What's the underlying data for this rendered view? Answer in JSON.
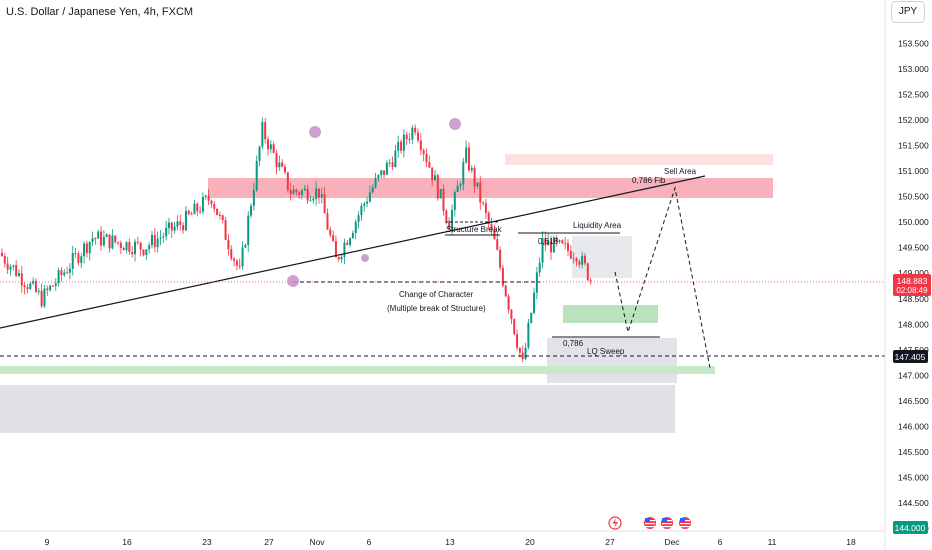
{
  "title": "U.S. Dollar / Japanese Yen, 4h, FXCM",
  "currency_button": "JPY",
  "chart_data": {
    "type": "candlestick",
    "title": "U.S. Dollar / Japanese Yen, 4h, FXCM",
    "ylim": [
      143.8,
      154.3
    ],
    "y_ticks": [
      "153.500",
      "153.000",
      "152.500",
      "152.000",
      "151.500",
      "151.000",
      "150.500",
      "150.000",
      "149.500",
      "149.000",
      "148.500",
      "148.000",
      "147.500",
      "147.000",
      "146.500",
      "146.000",
      "145.500",
      "145.000",
      "144.500",
      "144.000"
    ],
    "x_ticks": [
      "9",
      "16",
      "23",
      "27",
      "Nov",
      "6",
      "13",
      "20",
      "27",
      "Dec",
      "6",
      "11",
      "18"
    ],
    "price_labels": [
      {
        "price": "148.883",
        "countdown": "02:08:49",
        "value": 148.883,
        "color": "#f23645"
      },
      {
        "price": "147.405",
        "value": 147.405,
        "color": "#131722"
      },
      {
        "price": "144.000",
        "value": 144.0,
        "color": "#089981"
      }
    ],
    "annotations": {
      "sell_area": "Sell Area",
      "fib_786_top": "0,786 Fib",
      "structure_break": "Structure Break",
      "liquidity_area": "Liquidity Area",
      "fib_618": "0,618",
      "change_of_character": "Change of Character",
      "multiple_break": "(Multiple break of Structure)",
      "fib_786_bottom": "0,786",
      "lq_sweep": "LQ Sweep"
    },
    "zones": [
      {
        "name": "upper-light-red-zone",
        "y_range": [
          151.1,
          151.3
        ],
        "color": "#fde0e2"
      },
      {
        "name": "supply-zone",
        "y_range": [
          150.5,
          150.9
        ],
        "color": "#f7a9b2"
      },
      {
        "name": "liquidity-zone",
        "y_range": [
          148.9,
          149.8
        ],
        "color": "#e8e9ed"
      },
      {
        "name": "demand-zone",
        "y_range": [
          148.05,
          148.4
        ],
        "color": "#b9e2bd"
      },
      {
        "name": "sweep-gray-zone",
        "y_range": [
          146.95,
          147.8
        ],
        "color": "#e1e3e8"
      },
      {
        "name": "long-green-band",
        "y_range": [
          147.05,
          147.2
        ],
        "color": "#c8e8ca"
      },
      {
        "name": "lower-gray-zone",
        "y_range": [
          146.0,
          146.9
        ],
        "color": "#dfe1e6"
      }
    ],
    "series": [
      {
        "name": "segment-1",
        "start": 149.4,
        "end": 148.5,
        "count": 15,
        "bias": 0
      },
      {
        "name": "segment-2",
        "start": 148.5,
        "end": 149.7,
        "count": 18,
        "bias": 0
      },
      {
        "name": "segment-3",
        "start": 149.7,
        "end": 149.5,
        "count": 18,
        "bias": 0
      },
      {
        "name": "segment-4",
        "start": 149.5,
        "end": 150.0,
        "count": 14,
        "bias": 0
      },
      {
        "name": "segment-5",
        "start": 150.0,
        "end": 150.5,
        "count": 10,
        "bias": 0
      },
      {
        "name": "segment-6",
        "start": 150.5,
        "end": 149.0,
        "count": 10,
        "bias": 0
      },
      {
        "name": "segment-7",
        "start": 149.0,
        "end": 151.8,
        "count": 8,
        "bias": 0
      },
      {
        "name": "segment-8",
        "start": 151.8,
        "end": 150.6,
        "count": 10,
        "bias": 0
      },
      {
        "name": "segment-9",
        "start": 150.6,
        "end": 150.6,
        "count": 10,
        "bias": 0
      },
      {
        "name": "segment-10",
        "start": 150.6,
        "end": 149.25,
        "count": 6,
        "bias": 0
      },
      {
        "name": "segment-11",
        "start": 149.25,
        "end": 150.6,
        "count": 12,
        "bias": 0
      },
      {
        "name": "segment-12",
        "start": 150.6,
        "end": 151.9,
        "count": 16,
        "bias": 0
      },
      {
        "name": "segment-13",
        "start": 151.9,
        "end": 150.0,
        "count": 12,
        "bias": 0
      },
      {
        "name": "segment-14",
        "start": 150.0,
        "end": 151.3,
        "count": 6,
        "bias": 0
      },
      {
        "name": "segment-15",
        "start": 151.3,
        "end": 149.6,
        "count": 10,
        "bias": 0
      },
      {
        "name": "segment-16",
        "start": 149.6,
        "end": 147.2,
        "count": 10,
        "bias": 0
      },
      {
        "name": "segment-17",
        "start": 147.2,
        "end": 149.6,
        "count": 7,
        "bias": 0
      },
      {
        "name": "segment-18",
        "start": 149.6,
        "end": 149.4,
        "count": 12,
        "bias": 0
      },
      {
        "name": "segment-19",
        "start": 149.4,
        "end": 148.9,
        "count": 5,
        "bias": 0
      }
    ]
  }
}
